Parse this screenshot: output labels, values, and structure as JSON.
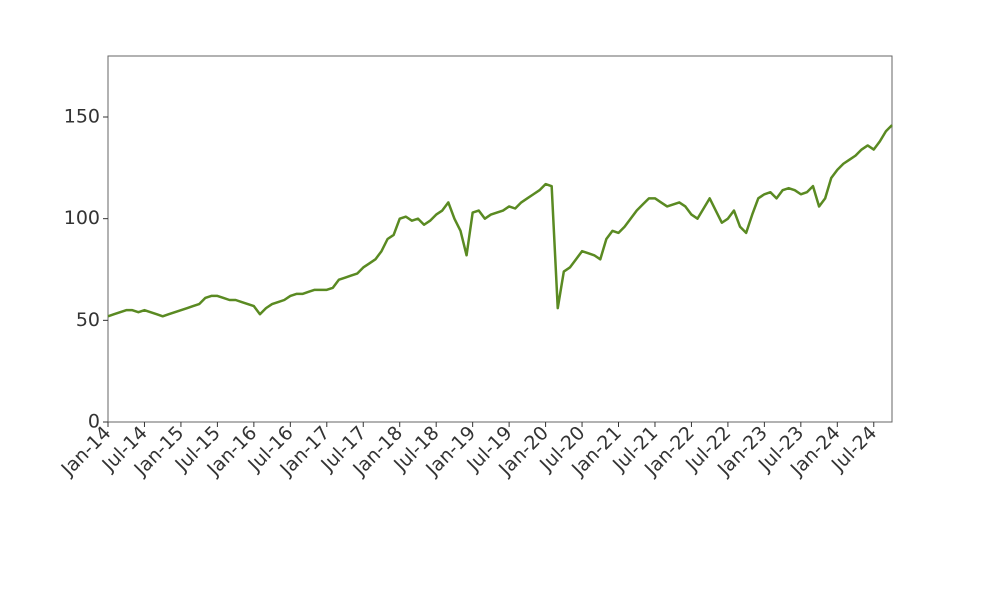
{
  "chart_data": {
    "type": "line",
    "x": [
      "2014-01",
      "2014-02",
      "2014-03",
      "2014-04",
      "2014-05",
      "2014-06",
      "2014-07",
      "2014-08",
      "2014-09",
      "2014-10",
      "2014-11",
      "2014-12",
      "2015-01",
      "2015-02",
      "2015-03",
      "2015-04",
      "2015-05",
      "2015-06",
      "2015-07",
      "2015-08",
      "2015-09",
      "2015-10",
      "2015-11",
      "2015-12",
      "2016-01",
      "2016-02",
      "2016-03",
      "2016-04",
      "2016-05",
      "2016-06",
      "2016-07",
      "2016-08",
      "2016-09",
      "2016-10",
      "2016-11",
      "2016-12",
      "2017-01",
      "2017-02",
      "2017-03",
      "2017-04",
      "2017-05",
      "2017-06",
      "2017-07",
      "2017-08",
      "2017-09",
      "2017-10",
      "2017-11",
      "2017-12",
      "2018-01",
      "2018-02",
      "2018-03",
      "2018-04",
      "2018-05",
      "2018-06",
      "2018-07",
      "2018-08",
      "2018-09",
      "2018-10",
      "2018-11",
      "2018-12",
      "2019-01",
      "2019-02",
      "2019-03",
      "2019-04",
      "2019-05",
      "2019-06",
      "2019-07",
      "2019-08",
      "2019-09",
      "2019-10",
      "2019-11",
      "2019-12",
      "2020-01",
      "2020-02",
      "2020-03",
      "2020-04",
      "2020-05",
      "2020-06",
      "2020-07",
      "2020-08",
      "2020-09",
      "2020-10",
      "2020-11",
      "2020-12",
      "2021-01",
      "2021-02",
      "2021-03",
      "2021-04",
      "2021-05",
      "2021-06",
      "2021-07",
      "2021-08",
      "2021-09",
      "2021-10",
      "2021-11",
      "2021-12",
      "2022-01",
      "2022-02",
      "2022-03",
      "2022-04",
      "2022-05",
      "2022-06",
      "2022-07",
      "2022-08",
      "2022-09",
      "2022-10",
      "2022-11",
      "2022-12",
      "2023-01",
      "2023-02",
      "2023-03",
      "2023-04",
      "2023-05",
      "2023-06",
      "2023-07",
      "2023-08",
      "2023-09",
      "2023-10",
      "2023-11",
      "2023-12",
      "2024-01",
      "2024-02",
      "2024-03",
      "2024-04",
      "2024-05",
      "2024-06",
      "2024-07",
      "2024-08",
      "2024-09",
      "2024-10"
    ],
    "series": [
      {
        "color": "#5a8a22",
        "values": [
          52,
          53,
          54,
          55,
          55,
          54,
          55,
          54,
          53,
          52,
          53,
          54,
          55,
          56,
          57,
          58,
          61,
          62,
          62,
          61,
          60,
          60,
          59,
          58,
          57,
          53,
          56,
          58,
          59,
          60,
          62,
          63,
          63,
          64,
          65,
          65,
          65,
          66,
          70,
          71,
          72,
          73,
          76,
          78,
          80,
          84,
          90,
          92,
          100,
          101,
          99,
          100,
          97,
          99,
          102,
          104,
          108,
          100,
          94,
          82,
          103,
          104,
          100,
          102,
          103,
          104,
          106,
          105,
          108,
          110,
          112,
          114,
          117,
          116,
          56,
          74,
          76,
          80,
          84,
          83,
          82,
          80,
          90,
          94,
          93,
          96,
          100,
          104,
          107,
          110,
          110,
          108,
          106,
          107,
          108,
          106,
          102,
          100,
          105,
          110,
          104,
          98,
          100,
          104,
          96,
          93,
          102,
          110,
          112,
          113,
          110,
          114,
          115,
          114,
          112,
          113,
          116,
          106,
          110,
          120,
          124,
          127,
          129,
          131,
          134,
          136,
          134,
          138,
          143,
          146
        ]
      }
    ],
    "xlim": [
      "2014-01",
      "2024-10"
    ],
    "xticks": [
      {
        "value": "2014-01",
        "label": "Jan-14"
      },
      {
        "value": "2014-07",
        "label": "Jul-14"
      },
      {
        "value": "2015-01",
        "label": "Jan-15"
      },
      {
        "value": "2015-07",
        "label": "Jul-15"
      },
      {
        "value": "2016-01",
        "label": "Jan-16"
      },
      {
        "value": "2016-07",
        "label": "Jul-16"
      },
      {
        "value": "2017-01",
        "label": "Jan-17"
      },
      {
        "value": "2017-07",
        "label": "Jul-17"
      },
      {
        "value": "2018-01",
        "label": "Jan-18"
      },
      {
        "value": "2018-07",
        "label": "Jul-18"
      },
      {
        "value": "2019-01",
        "label": "Jan-19"
      },
      {
        "value": "2019-07",
        "label": "Jul-19"
      },
      {
        "value": "2020-01",
        "label": "Jan-20"
      },
      {
        "value": "2020-07",
        "label": "Jul-20"
      },
      {
        "value": "2021-01",
        "label": "Jan-21"
      },
      {
        "value": "2021-07",
        "label": "Jul-21"
      },
      {
        "value": "2022-01",
        "label": "Jan-22"
      },
      {
        "value": "2022-07",
        "label": "Jul-22"
      },
      {
        "value": "2023-01",
        "label": "Jan-23"
      },
      {
        "value": "2023-07",
        "label": "Jul-23"
      },
      {
        "value": "2024-01",
        "label": "Jan-24"
      },
      {
        "value": "2024-07",
        "label": "Jul-24"
      }
    ],
    "ylim": [
      0,
      180
    ],
    "yticks": [
      0,
      50,
      100,
      150
    ],
    "grid": false
  }
}
